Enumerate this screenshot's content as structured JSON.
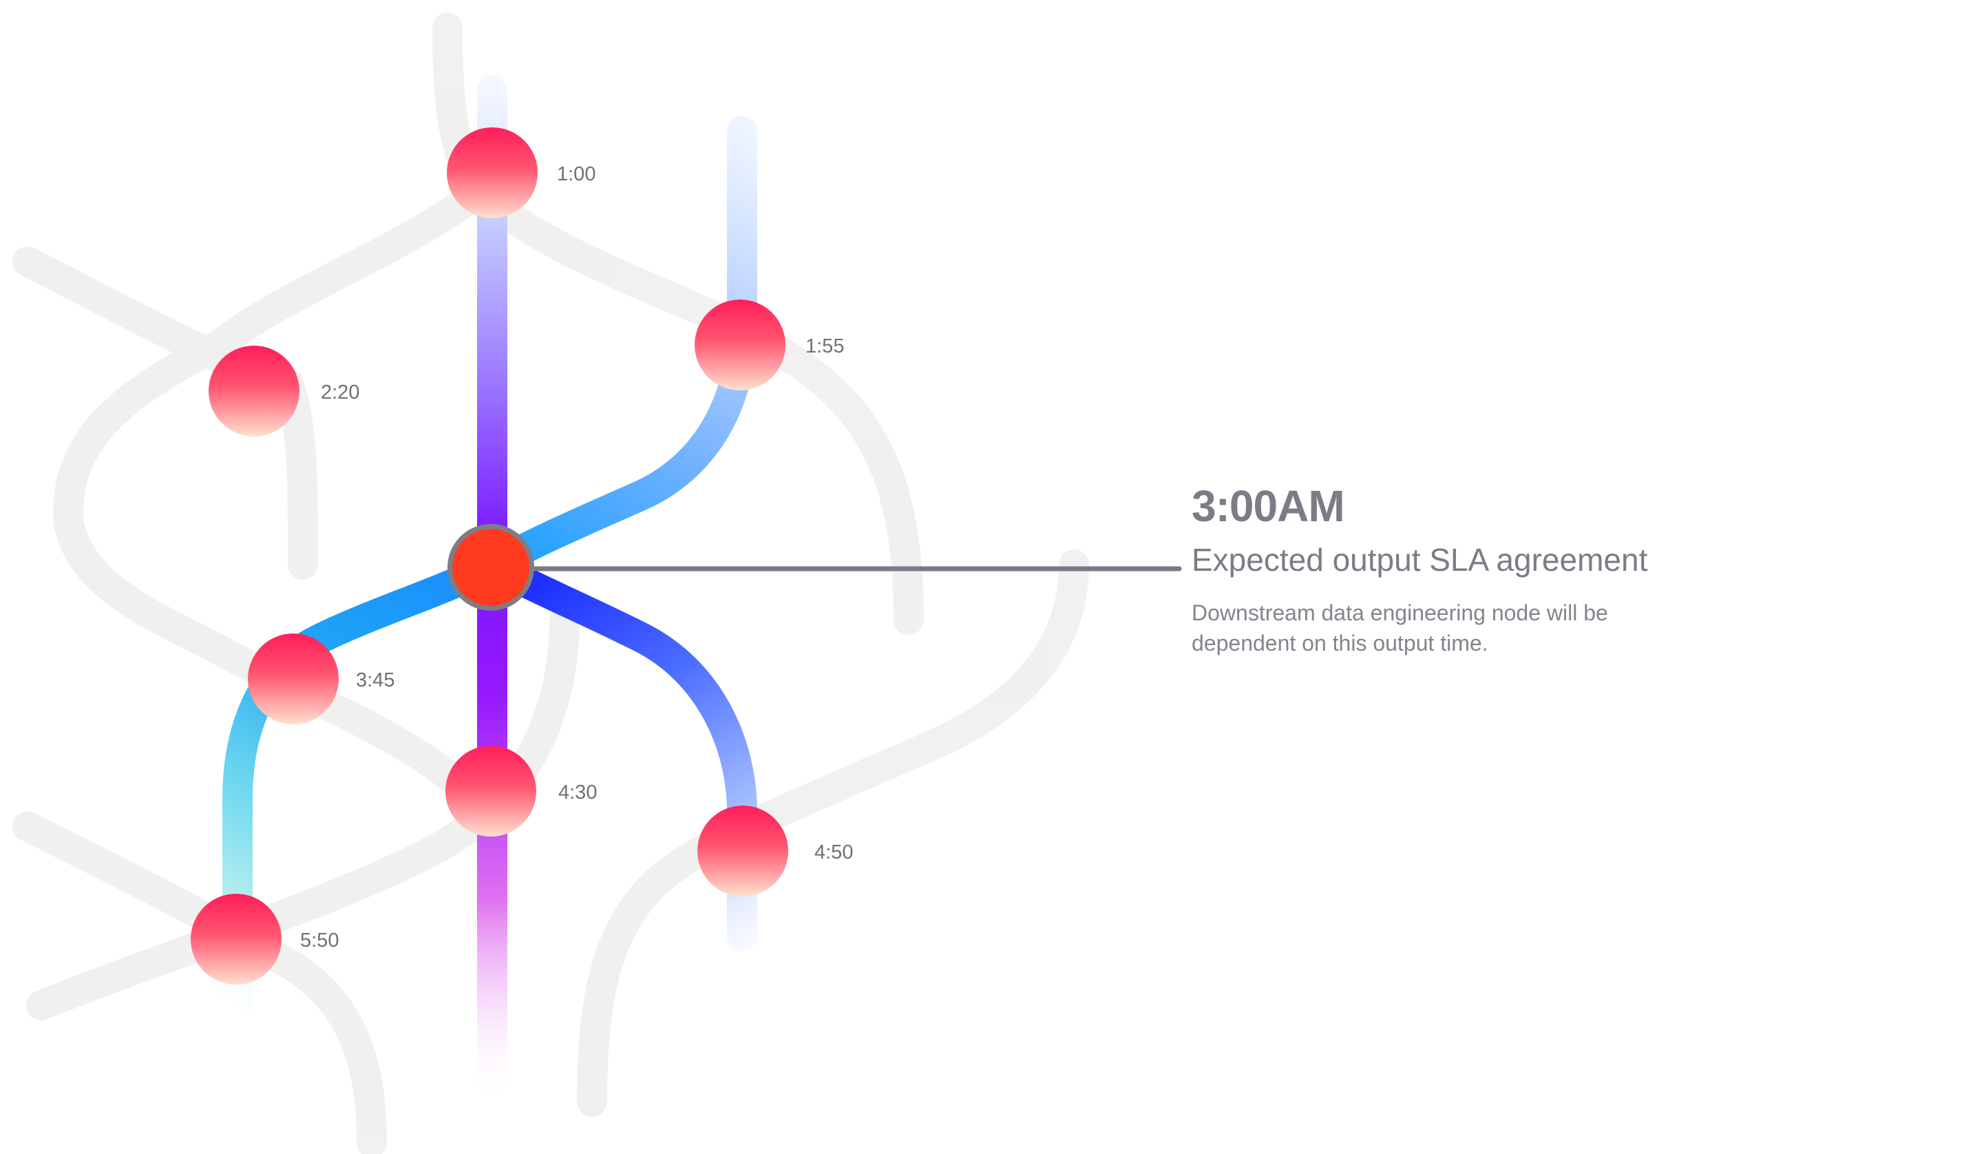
{
  "nodes": [
    {
      "id": "n1",
      "label": "1:00"
    },
    {
      "id": "n2",
      "label": "1:55"
    },
    {
      "id": "n3",
      "label": "2:20"
    },
    {
      "id": "n4",
      "label": "3:45"
    },
    {
      "id": "n5",
      "label": "4:30"
    },
    {
      "id": "n6",
      "label": "4:50"
    },
    {
      "id": "n7",
      "label": "5:50"
    }
  ],
  "callout": {
    "time": "3:00AM",
    "heading": "Expected output SLA agreement",
    "body": "Downstream data engineering node will be dependent on this output time."
  },
  "colors": {
    "center_node": "#ff3b1f",
    "node_top": "#ff2060",
    "node_bottom": "#ffd0c0",
    "vertical_line": "#8a1cff",
    "link_blue": "#1f2cff",
    "link_cyan": "#1aa2ff",
    "callout_text": "#7b7c86",
    "background_lines": "#f2f2f2"
  }
}
